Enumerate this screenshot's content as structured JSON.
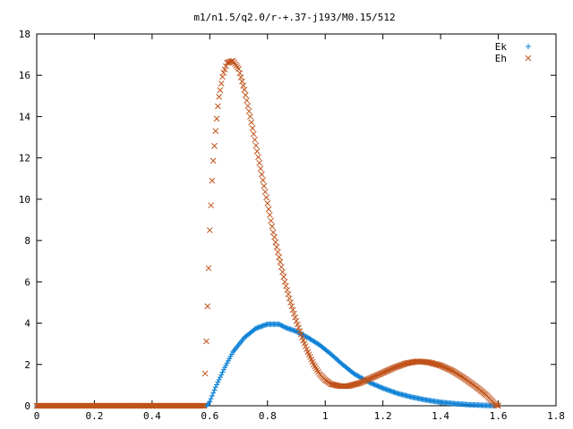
{
  "chart_data": {
    "type": "scatter",
    "title": "m1/n1.5/q2.0/r-+.37-j193/M0.15/512",
    "xlabel": "",
    "ylabel": "",
    "xlim": [
      0,
      1.8
    ],
    "ylim": [
      0,
      18
    ],
    "xticks": [
      "0",
      "0.2",
      "0.4",
      "0.6",
      "0.8",
      "1",
      "1.2",
      "1.4",
      "1.6",
      "1.8"
    ],
    "yticks": [
      "0",
      "2",
      "4",
      "6",
      "8",
      "10",
      "12",
      "14",
      "16",
      "18"
    ],
    "legend_position": "top-right",
    "grid": false,
    "series": [
      {
        "name": "Ek",
        "marker": "plus",
        "color": "#0a7fd6",
        "curve": [
          [
            0,
            0
          ],
          [
            0.59,
            0
          ],
          [
            0.6,
            0.2
          ],
          [
            0.62,
            0.9
          ],
          [
            0.65,
            1.8
          ],
          [
            0.68,
            2.6
          ],
          [
            0.72,
            3.3
          ],
          [
            0.76,
            3.75
          ],
          [
            0.8,
            3.95
          ],
          [
            0.84,
            3.95
          ],
          [
            0.86,
            3.8
          ],
          [
            0.9,
            3.6
          ],
          [
            0.94,
            3.3
          ],
          [
            0.98,
            2.95
          ],
          [
            1.02,
            2.5
          ],
          [
            1.06,
            2.0
          ],
          [
            1.1,
            1.55
          ],
          [
            1.15,
            1.15
          ],
          [
            1.2,
            0.85
          ],
          [
            1.25,
            0.6
          ],
          [
            1.3,
            0.42
          ],
          [
            1.35,
            0.28
          ],
          [
            1.4,
            0.17
          ],
          [
            1.45,
            0.1
          ],
          [
            1.5,
            0.05
          ],
          [
            1.55,
            0.02
          ],
          [
            1.59,
            0.0
          ]
        ]
      },
      {
        "name": "Eh",
        "marker": "cross",
        "color": "#c0531a",
        "curve": [
          [
            0,
            0
          ],
          [
            0.58,
            0
          ],
          [
            0.59,
            3.9
          ],
          [
            0.6,
            8.5
          ],
          [
            0.61,
            11.5
          ],
          [
            0.62,
            13.3
          ],
          [
            0.63,
            14.8
          ],
          [
            0.645,
            16.0
          ],
          [
            0.66,
            16.6
          ],
          [
            0.68,
            16.7
          ],
          [
            0.7,
            16.3
          ],
          [
            0.72,
            15.3
          ],
          [
            0.74,
            14.0
          ],
          [
            0.76,
            12.6
          ],
          [
            0.78,
            11.2
          ],
          [
            0.8,
            9.8
          ],
          [
            0.82,
            8.4
          ],
          [
            0.84,
            7.2
          ],
          [
            0.86,
            6.0
          ],
          [
            0.88,
            5.0
          ],
          [
            0.9,
            4.1
          ],
          [
            0.92,
            3.3
          ],
          [
            0.94,
            2.6
          ],
          [
            0.96,
            2.0
          ],
          [
            0.98,
            1.55
          ],
          [
            1.0,
            1.25
          ],
          [
            1.02,
            1.05
          ],
          [
            1.05,
            0.95
          ],
          [
            1.08,
            0.95
          ],
          [
            1.12,
            1.1
          ],
          [
            1.16,
            1.35
          ],
          [
            1.2,
            1.6
          ],
          [
            1.24,
            1.85
          ],
          [
            1.28,
            2.05
          ],
          [
            1.32,
            2.15
          ],
          [
            1.36,
            2.1
          ],
          [
            1.4,
            1.95
          ],
          [
            1.44,
            1.7
          ],
          [
            1.48,
            1.35
          ],
          [
            1.52,
            0.95
          ],
          [
            1.56,
            0.5
          ],
          [
            1.59,
            0.05
          ],
          [
            1.6,
            0.0
          ]
        ]
      }
    ]
  }
}
